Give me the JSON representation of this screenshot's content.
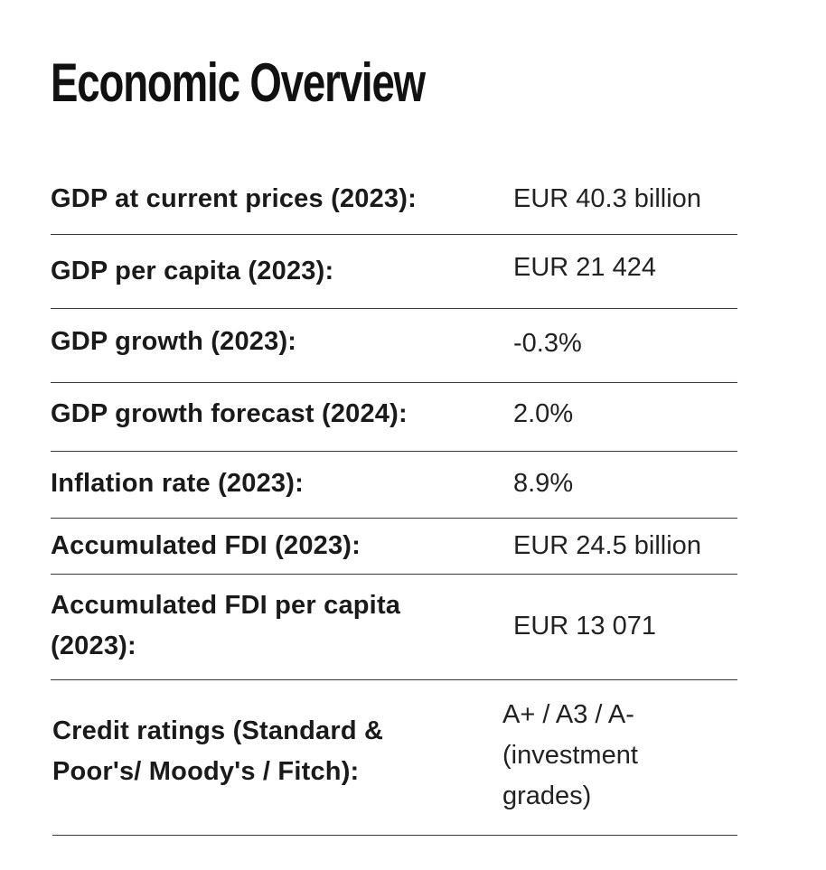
{
  "title": "Economic Overview",
  "rows": [
    {
      "label": "GDP at current prices (2023):",
      "value": "EUR 40.3 billion"
    },
    {
      "label": "GDP per capita (2023):",
      "value": "EUR 21 424"
    },
    {
      "label": "GDP growth (2023):",
      "value": "-0.3%"
    },
    {
      "label": "GDP growth forecast (2024):",
      "value": "2.0%"
    },
    {
      "label": "Inflation rate (2023):",
      "value": "8.9%"
    },
    {
      "label": "Accumulated FDI (2023):",
      "value": "EUR 24.5 billion"
    },
    {
      "label": "Accumulated FDI per capita (2023):",
      "value": "EUR 13 071"
    },
    {
      "label": "Credit ratings (Standard & Poor's/ Moody's / Fitch):",
      "value": "A+ / A3 / A- (investment grades)"
    }
  ]
}
